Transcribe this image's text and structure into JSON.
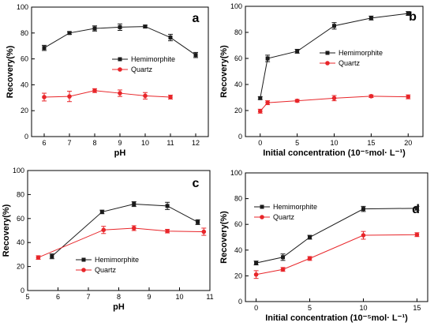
{
  "colors": {
    "hemimorphite": "#1a1a1a",
    "quartz": "#e8262a",
    "axis": "#000000"
  },
  "chart_data": [
    {
      "type": "line",
      "panel_label": "a",
      "xlabel": "pH",
      "ylabel": "Recovery(%)",
      "xlim": [
        5.5,
        12.5
      ],
      "ylim": [
        0,
        100
      ],
      "xticks": [
        6,
        7,
        8,
        9,
        10,
        11,
        12
      ],
      "yticks": [
        0,
        20,
        40,
        60,
        80,
        100
      ],
      "legend_position": "center-right",
      "series": [
        {
          "name": "Hemimorphite",
          "marker": "square",
          "x": [
            6,
            7,
            8,
            9,
            10,
            11,
            12
          ],
          "y": [
            68.5,
            80,
            83.5,
            84.5,
            85,
            76.5,
            63
          ],
          "err": [
            2,
            1,
            2,
            2.5,
            1,
            2.5,
            2
          ]
        },
        {
          "name": "Quartz",
          "marker": "circle",
          "x": [
            6,
            7,
            8,
            9,
            10,
            11
          ],
          "y": [
            30.5,
            31,
            35.5,
            33.5,
            31.5,
            30.5
          ],
          "err": [
            3,
            4,
            1.5,
            2.5,
            2.5,
            1.5
          ]
        }
      ]
    },
    {
      "type": "line",
      "panel_label": "b",
      "xlabel": "Initial concentration (10⁻⁵mol· L⁻¹)",
      "ylabel": "Recovery(%)",
      "xlim": [
        -2,
        22
      ],
      "ylim": [
        0,
        100
      ],
      "xticks": [
        0,
        5,
        10,
        15,
        20
      ],
      "yticks": [
        0,
        20,
        40,
        60,
        80,
        100
      ],
      "legend_position": "center-right",
      "series": [
        {
          "name": "Hemimorphite",
          "marker": "square",
          "x": [
            0,
            1,
            5,
            10,
            15,
            20
          ],
          "y": [
            29.5,
            60,
            65.5,
            85,
            91,
            94.5
          ],
          "err": [
            1,
            2.5,
            1.5,
            2.5,
            1.5,
            1.5
          ]
        },
        {
          "name": "Quartz",
          "marker": "circle",
          "x": [
            0,
            1,
            5,
            10,
            15,
            20
          ],
          "y": [
            19.5,
            26,
            27.5,
            29.5,
            31,
            30.5
          ],
          "err": [
            1.5,
            1.5,
            1,
            2,
            1,
            1.5
          ]
        }
      ]
    },
    {
      "type": "line",
      "panel_label": "c",
      "xlabel": "pH",
      "ylabel": "Recovery(%)",
      "xlim": [
        5,
        11
      ],
      "ylim": [
        0,
        100
      ],
      "xticks": [
        5,
        6,
        7,
        8,
        9,
        10,
        11
      ],
      "yticks": [
        0,
        20,
        40,
        60,
        80,
        100
      ],
      "legend_position": "lower-right",
      "series": [
        {
          "name": "Hemimorphite",
          "marker": "square",
          "x": [
            5.8,
            7.45,
            8.5,
            9.6,
            10.6
          ],
          "y": [
            28.5,
            65.5,
            72,
            70.5,
            57
          ],
          "err": [
            2,
            1.5,
            2,
            3,
            2
          ]
        },
        {
          "name": "Quartz",
          "marker": "circle",
          "x": [
            5.35,
            7.5,
            8.5,
            9.6,
            10.8
          ],
          "y": [
            27.5,
            50.5,
            52,
            49.5,
            49
          ],
          "err": [
            1.5,
            3,
            2,
            1.5,
            3
          ]
        }
      ]
    },
    {
      "type": "line",
      "panel_label": "d",
      "xlabel": "Initial concentration (10⁻⁵mol· L⁻¹)",
      "ylabel": "Recovery(%)",
      "xlim": [
        -1,
        16
      ],
      "ylim": [
        0,
        100
      ],
      "xticks": [
        0,
        5,
        10,
        15
      ],
      "yticks": [
        0,
        20,
        40,
        60,
        80,
        100
      ],
      "legend_position": "top-left",
      "series": [
        {
          "name": "Hemimorphite",
          "marker": "square",
          "x": [
            0,
            2.5,
            5,
            10,
            15
          ],
          "y": [
            30,
            34.5,
            50,
            72,
            72.5
          ],
          "err": [
            1.5,
            2.5,
            1.5,
            2,
            1.5
          ]
        },
        {
          "name": "Quartz",
          "marker": "circle",
          "x": [
            0,
            2.5,
            5,
            10,
            15
          ],
          "y": [
            21,
            25,
            33.5,
            51.5,
            52
          ],
          "err": [
            3,
            1.5,
            1.5,
            3,
            1.5
          ]
        }
      ]
    }
  ]
}
